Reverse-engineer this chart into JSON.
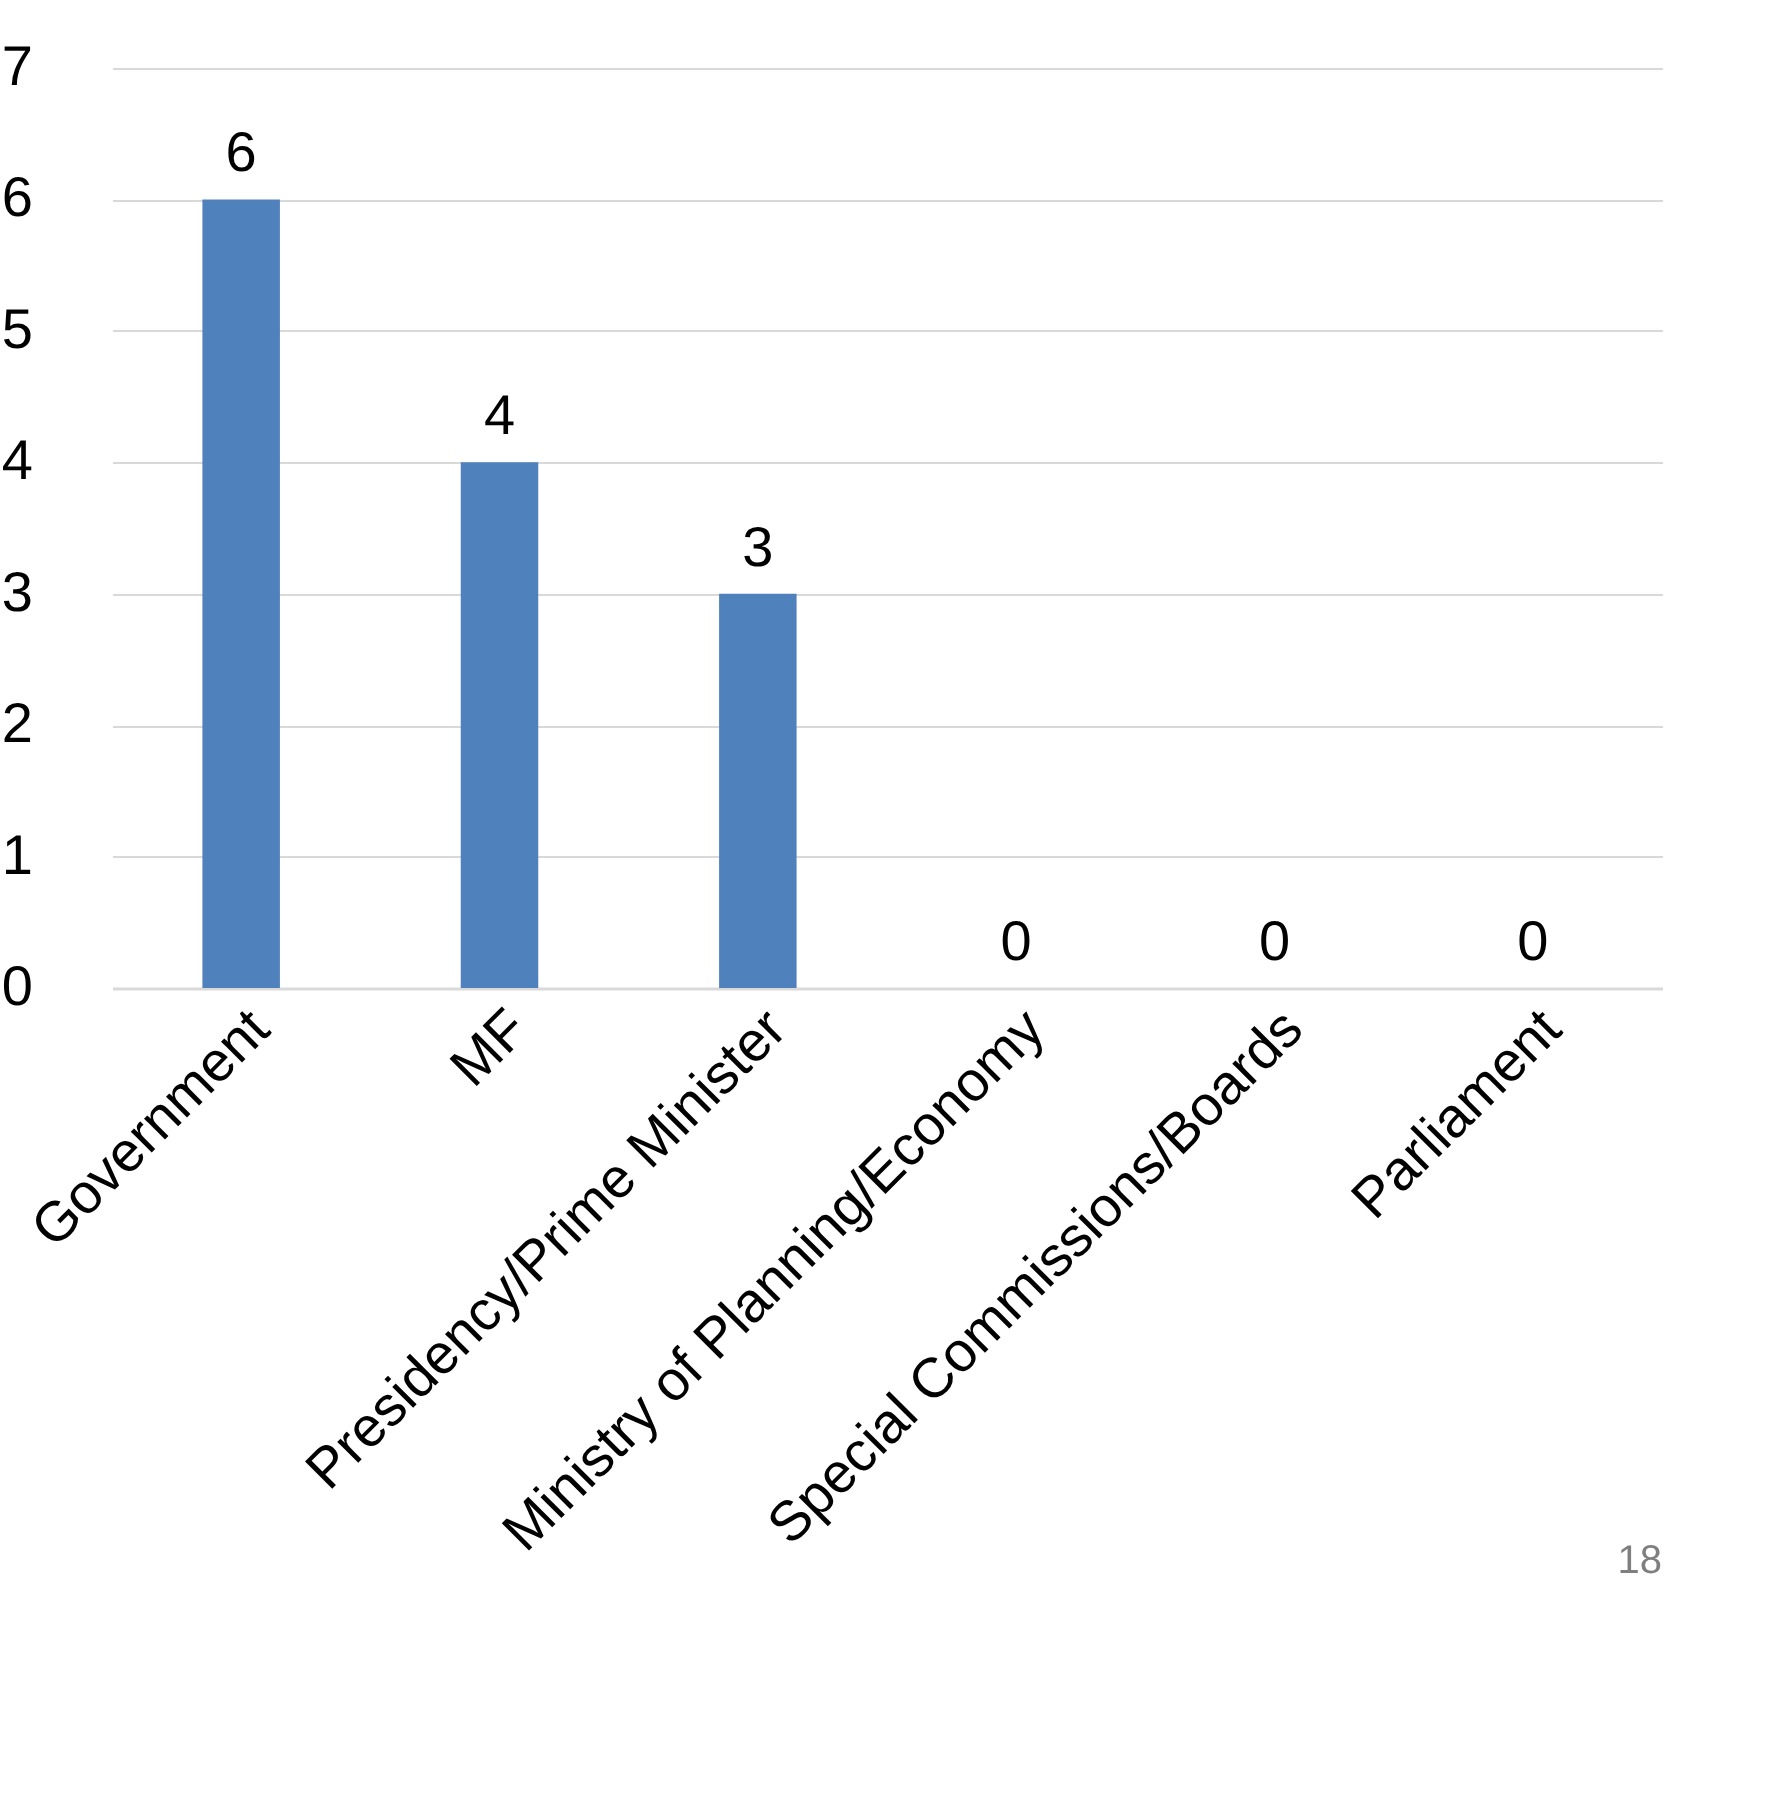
{
  "chart_data": {
    "type": "bar",
    "categories": [
      "Government",
      "MF",
      "Presidency/Prime Minister",
      "Ministry of Planning/Economy",
      "Special Commissions/Boards",
      "Parliament"
    ],
    "values": [
      6,
      4,
      3,
      0,
      0,
      0
    ],
    "color": "#4f81bd",
    "ylim": [
      0,
      7
    ],
    "yticks": [
      0,
      1,
      2,
      3,
      4,
      5,
      6,
      7
    ],
    "grid": "y",
    "data_labels": true,
    "annotations": [
      "18"
    ]
  }
}
